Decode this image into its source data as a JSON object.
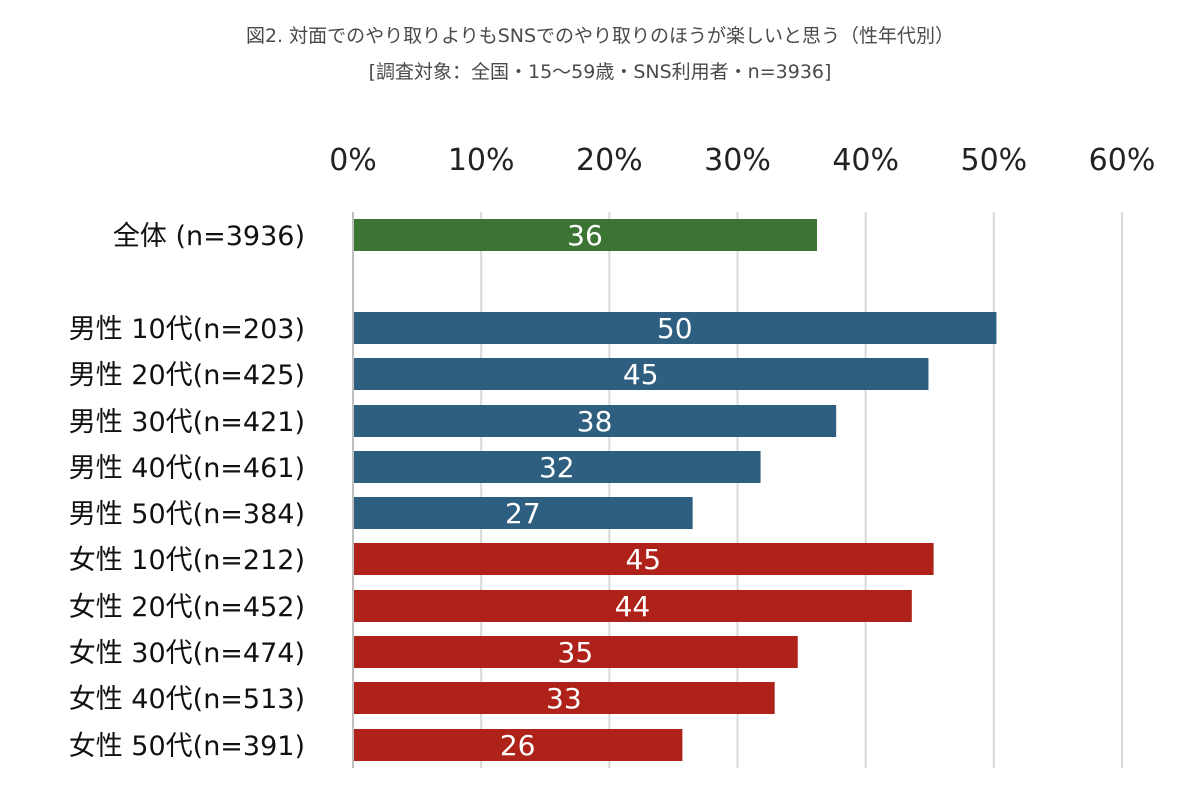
{
  "chart_data": {
    "type": "bar",
    "orientation": "horizontal",
    "title": "図2. 対面でのやり取りよりもSNSでのやり取りのほうが楽しいと思う（性年代別）",
    "subtitle": "[調査対象：全国・15～59歳・SNS利用者・n=3936]",
    "xlim": [
      0,
      60
    ],
    "xticks": [
      0,
      10,
      20,
      30,
      40,
      50,
      60
    ],
    "xtick_labels": [
      "0%",
      "10%",
      "20%",
      "30%",
      "40%",
      "50%",
      "60%"
    ],
    "grid": true,
    "categories": [
      "全体 (n=3936)",
      "男性 10代(n=203)",
      "男性 20代(n=425)",
      "男性 30代(n=421)",
      "男性 40代(n=461)",
      "男性 50代(n=384)",
      "女性 10代(n=212)",
      "女性 20代(n=452)",
      "女性 30代(n=474)",
      "女性 40代(n=513)",
      "女性 50代(n=391)"
    ],
    "values": [
      36.2,
      50.2,
      44.9,
      37.7,
      31.8,
      26.5,
      45.3,
      43.6,
      34.7,
      32.9,
      25.7
    ],
    "value_labels": [
      "36",
      "50",
      "45",
      "38",
      "32",
      "27",
      "45",
      "44",
      "35",
      "33",
      "26"
    ],
    "groups": [
      "total",
      "male",
      "male",
      "male",
      "male",
      "male",
      "female",
      "female",
      "female",
      "female",
      "female"
    ],
    "colors": {
      "total": "#3c7433",
      "male": "#2e5e80",
      "female": "#ae2219"
    },
    "grid_color": "#d9d9d9",
    "axis_color": "#bfbfbf"
  }
}
